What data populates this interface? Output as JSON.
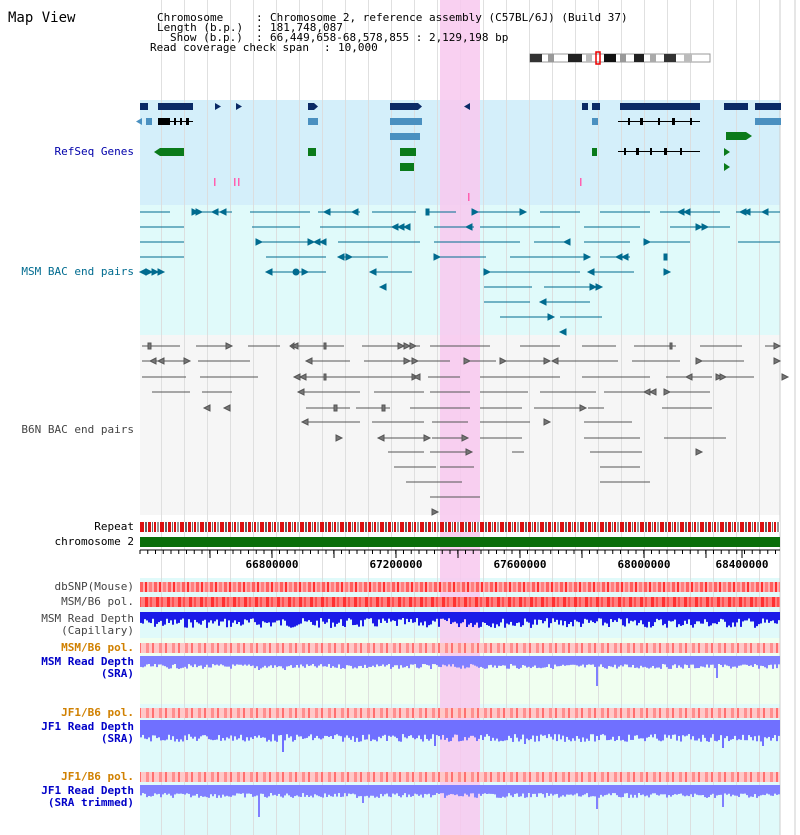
{
  "app": {
    "title": "Map View"
  },
  "header": {
    "chromosome_key": "Chromosome",
    "chromosome_value": "Chromosome 2, reference assembly (C57BL/6J) (Build 37)",
    "length_key": "Length (b.p.)",
    "length_value": "181,748,087",
    "show_key": "Show (b.p.)",
    "show_value": "66,449,658-68,578,855 : 2,129,198 bp",
    "span_key": "Read coverage check span",
    "span_value": "10,000"
  },
  "tracks": {
    "refseq": "RefSeq Genes",
    "msm_bac": "MSM BAC end pairs",
    "b6n_bac": "B6N BAC end pairs",
    "repeat": "Repeat",
    "chromosome": "chromosome 2",
    "dbsnp": "dbSNP(Mouse)",
    "msm_b6_pol_1": "MSM/B6 pol.",
    "msm_depth_cap_1": "MSM Read Depth",
    "msm_depth_cap_2": "(Capillary)",
    "msm_b6_pol_2": "MSM/B6 pol.",
    "msm_depth_sra_1": "MSM Read Depth",
    "msm_depth_sra_2": "(SRA)",
    "jf1_b6_pol_1": "JF1/B6 pol.",
    "jf1_depth_sra_1": "JF1 Read Depth",
    "jf1_depth_sra_2": "(SRA)",
    "jf1_b6_pol_2": "JF1/B6 pol.",
    "jf1_depth_trim_1": "JF1 Read Depth",
    "jf1_depth_trim_2": "(SRA trimmed)"
  },
  "axis": {
    "ticks": [
      "66800000",
      "67200000",
      "67600000",
      "68000000",
      "68400000"
    ]
  },
  "colors": {
    "refseq_band": "#d4effa",
    "msm_band": "#e0fafa",
    "b6n_band": "#f6f6f6",
    "selection": "#f8d0f0",
    "gene_dark": "#0a2a66",
    "gene_mid": "#4a90c0",
    "gene_green": "#0a7a1a",
    "chromosome_bar": "#0a6e0a",
    "repeat_red": "#e00000",
    "depth_blue": "#1a1ae8",
    "depth_light": "#8080ff"
  }
}
